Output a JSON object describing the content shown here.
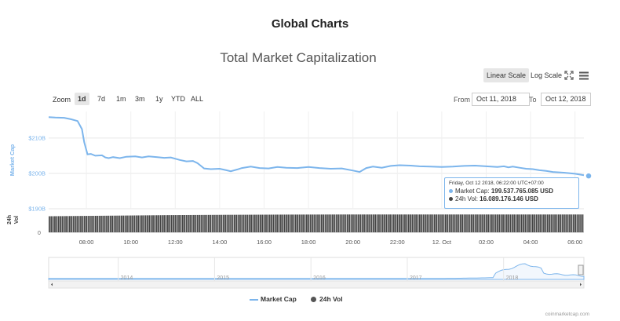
{
  "page": {
    "title": "Global Charts",
    "credit": "coinmarketcap.com"
  },
  "controls": {
    "scales": [
      {
        "label": "Linear Scale",
        "active": true
      },
      {
        "label": "Log Scale",
        "active": false
      }
    ],
    "zoom_label": "Zoom",
    "zoom_buttons": [
      {
        "label": "1d",
        "active": true
      },
      {
        "label": "7d",
        "active": false
      },
      {
        "label": "1m",
        "active": false
      },
      {
        "label": "3m",
        "active": false
      },
      {
        "label": "1y",
        "active": false
      },
      {
        "label": "YTD",
        "active": false
      },
      {
        "label": "ALL",
        "active": false
      }
    ],
    "from_label": "From",
    "from_value": "Oct 11, 2018",
    "to_label": "To",
    "to_value": "Oct 12, 2018",
    "icons": [
      "fullscreen-icon",
      "menu-icon"
    ]
  },
  "colors": {
    "market_cap": "#7cb5ec",
    "volume": "#444444",
    "tooltip_border": "#7cb5ec"
  },
  "chart_data": {
    "type": "line",
    "title": "Total Market Capitalization",
    "x_tick_labels": [
      "08:00",
      "10:00",
      "12:00",
      "14:00",
      "16:00",
      "18:00",
      "20:00",
      "22:00",
      "12. Oct",
      "02:00",
      "04:00",
      "06:00"
    ],
    "x_ticks_hours": [
      8,
      10,
      12,
      14,
      16,
      18,
      20,
      22,
      24,
      26,
      28,
      30
    ],
    "x_range_hours": [
      6.3,
      30.4
    ],
    "ylabel": "Market Cap",
    "y_tick_labels": [
      "$190B",
      "$200B",
      "$210B"
    ],
    "y_ticks": [
      190,
      200,
      210
    ],
    "ylim": [
      190,
      217.5
    ],
    "series": [
      {
        "name": "Market Cap",
        "unit": "billion USD",
        "x_hours": [
          6.3,
          6.6,
          7.0,
          7.3,
          7.6,
          7.8,
          7.9,
          8.05,
          8.2,
          8.4,
          8.7,
          8.85,
          9.0,
          9.2,
          9.5,
          9.8,
          10.2,
          10.5,
          10.8,
          11.2,
          11.5,
          11.8,
          12.2,
          12.5,
          12.8,
          13.0,
          13.3,
          13.6,
          14.0,
          14.3,
          14.5,
          14.8,
          15.0,
          15.4,
          15.8,
          16.2,
          16.6,
          17.0,
          17.5,
          18.0,
          18.5,
          19.0,
          19.5,
          20.0,
          20.3,
          20.6,
          20.9,
          21.3,
          21.7,
          22.1,
          22.6,
          23.0,
          23.5,
          24.0,
          24.5,
          25.0,
          25.5,
          26.0,
          26.5,
          26.8,
          27.0,
          27.2,
          27.5,
          27.8,
          28.1,
          28.4,
          28.7,
          29.0,
          29.5,
          30.0,
          30.4
        ],
        "values": [
          215.9,
          215.8,
          215.7,
          215.3,
          214.8,
          212.5,
          208.8,
          205.4,
          205.5,
          205.0,
          205.1,
          204.5,
          204.3,
          204.6,
          204.3,
          204.7,
          204.8,
          204.5,
          204.8,
          204.6,
          204.4,
          204.5,
          203.8,
          203.4,
          203.5,
          202.9,
          201.4,
          201.2,
          201.3,
          200.9,
          200.6,
          201.1,
          201.5,
          201.9,
          201.5,
          201.4,
          201.8,
          201.6,
          201.5,
          201.8,
          201.5,
          201.3,
          201.4,
          200.8,
          200.4,
          201.5,
          201.9,
          201.6,
          202.1,
          202.3,
          202.2,
          202.0,
          201.9,
          201.8,
          201.9,
          202.1,
          202.2,
          202.0,
          201.8,
          202.0,
          201.7,
          201.9,
          201.6,
          201.3,
          201.2,
          200.9,
          200.7,
          200.4,
          200.2,
          199.9,
          199.5
        ]
      },
      {
        "name": "24h Vol",
        "unit": "billion USD",
        "label": "24h Vol",
        "tick_labels": [
          "0"
        ],
        "hours_start": 6.3,
        "hours_end": 30.4,
        "interval_hours": 0.0833,
        "approx_values": [
          14.5,
          15.0,
          15.5,
          15.8,
          16.0,
          16.1,
          16.1,
          16.1,
          16.1,
          16.1
        ]
      }
    ],
    "navigator": {
      "years": [
        "2014",
        "2015",
        "2016",
        "2017",
        "2018"
      ]
    },
    "tooltip": {
      "date": "Friday, Oct 12 2018, 06:22:00 UTC+07:00",
      "market_cap_label": "Market Cap:",
      "market_cap_value": "199.537.765.085 USD",
      "vol_label": "24h Vol:",
      "vol_value": "16.089.176.146 USD"
    },
    "legend": [
      {
        "label": "Market Cap"
      },
      {
        "label": "24h Vol"
      }
    ]
  }
}
